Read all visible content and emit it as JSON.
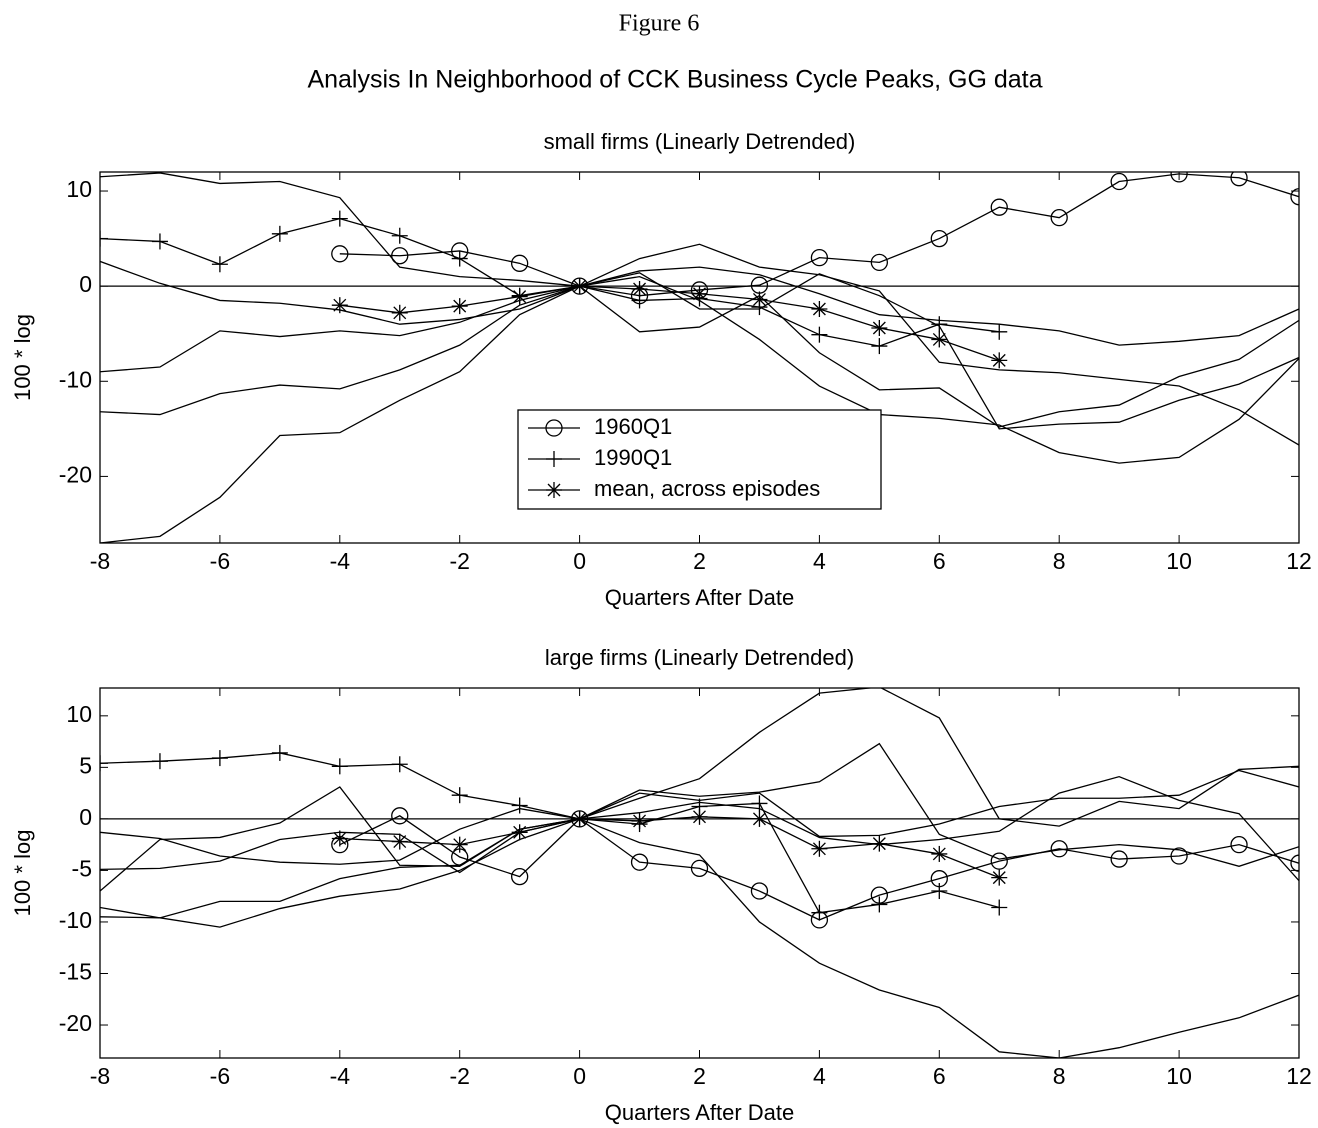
{
  "header": {
    "figure": "Figure 6",
    "title": "Analysis In Neighborhood of CCK Business Cycle Peaks, GG data"
  },
  "chart_data": [
    {
      "type": "line",
      "title": "small firms (Linearly Detrended)",
      "xlabel": "Quarters After Date",
      "ylabel": "100 * log",
      "x": [
        -8,
        -7,
        -6,
        -5,
        -4,
        -3,
        -2,
        -1,
        0,
        1,
        2,
        3,
        4,
        5,
        6,
        7,
        8,
        9,
        10,
        11,
        12
      ],
      "xlim": [
        -8,
        12
      ],
      "xticks": [
        -8,
        -6,
        -4,
        -2,
        0,
        2,
        4,
        6,
        8,
        10,
        12
      ],
      "ylim": [
        -27,
        12
      ],
      "yticks": [
        -20,
        -10,
        0,
        10
      ],
      "grid": false,
      "zero_line": true,
      "legend": "lower center",
      "series": [
        {
          "name": "1960Q1",
          "color": "#000000",
          "marker": "o",
          "values": [
            null,
            null,
            null,
            null,
            3.4,
            3.2,
            3.7,
            2.4,
            0,
            -1.0,
            -0.4,
            0.1,
            3.0,
            2.5,
            5.0,
            8.3,
            7.2,
            11.0,
            11.8,
            11.4,
            9.4
          ]
        },
        {
          "name": "1990Q1",
          "color": "#000000",
          "marker": "+",
          "values": [
            5.0,
            4.7,
            2.3,
            5.5,
            7.1,
            5.3,
            2.9,
            -1.0,
            0,
            -1.5,
            -1.3,
            -2.2,
            -5.1,
            -6.3,
            -4.0,
            -4.8,
            null,
            null,
            null,
            null,
            null
          ]
        },
        {
          "name": "mean, across episodes",
          "color": "#000000",
          "marker": "*",
          "values": [
            null,
            null,
            null,
            null,
            -2.0,
            -2.8,
            -2.1,
            -1.1,
            0,
            -0.3,
            -0.8,
            -1.4,
            -2.4,
            -4.4,
            -5.6,
            -7.8,
            null,
            null,
            null,
            null,
            null
          ]
        },
        {
          "color": "#000000",
          "values": [
            11.5,
            11.9,
            10.8,
            11.0,
            9.3,
            2.0,
            1.0,
            0.6,
            0,
            2.9,
            4.4,
            2.0,
            1.2,
            -0.5,
            -8.0,
            -8.8,
            -9.1,
            -9.8,
            -10.5,
            -13.0,
            -16.7
          ]
        },
        {
          "color": "#000000",
          "values": [
            2.6,
            0.3,
            -1.5,
            -1.8,
            -2.5,
            -4.0,
            -3.5,
            -2.4,
            0,
            1.6,
            2.0,
            1.2,
            -0.8,
            -3.0,
            -3.6,
            -4.0,
            -4.7,
            -6.2,
            -5.8,
            -5.2,
            -2.4
          ]
        },
        {
          "color": "#000000",
          "values": [
            -9.0,
            -8.5,
            -4.7,
            -5.3,
            -4.7,
            -5.2,
            -3.8,
            -1.5,
            0,
            1.4,
            -2.4,
            -2.4,
            1.3,
            -1.0,
            -4.2,
            -15.0,
            -14.5,
            -14.3,
            -12.0,
            -10.3,
            -7.5
          ]
        },
        {
          "color": "#000000",
          "values": [
            -13.2,
            -13.5,
            -11.3,
            -10.4,
            -10.8,
            -8.8,
            -6.2,
            -2.0,
            0,
            -4.8,
            -4.3,
            -1.0,
            -7.0,
            -10.9,
            -10.7,
            -14.8,
            -13.2,
            -12.5,
            -9.5,
            -7.7,
            -3.6
          ]
        },
        {
          "color": "#000000",
          "values": [
            -27.0,
            -26.3,
            -22.2,
            -15.7,
            -15.4,
            -12.0,
            -9.0,
            -3.0,
            0,
            1.0,
            -1.5,
            -5.6,
            -10.5,
            -13.5,
            -13.9,
            -14.6,
            -17.5,
            -18.6,
            -18.0,
            -14.0,
            -7.6
          ]
        }
      ]
    },
    {
      "type": "line",
      "title": "large firms (Linearly Detrended)",
      "xlabel": "Quarters After Date",
      "ylabel": "100 * log",
      "x": [
        -8,
        -7,
        -6,
        -5,
        -4,
        -3,
        -2,
        -1,
        0,
        1,
        2,
        3,
        4,
        5,
        6,
        7,
        8,
        9,
        10,
        11,
        12
      ],
      "xlim": [
        -8,
        12
      ],
      "xticks": [
        -8,
        -6,
        -4,
        -2,
        0,
        2,
        4,
        6,
        8,
        10,
        12
      ],
      "ylim": [
        -23.2,
        12.7
      ],
      "yticks": [
        -20,
        -15,
        -10,
        -5,
        0,
        5,
        10
      ],
      "grid": false,
      "zero_line": true,
      "series": [
        {
          "color": "#000000",
          "marker": "o",
          "values": [
            null,
            null,
            null,
            null,
            -2.5,
            0.3,
            -3.7,
            -5.6,
            0,
            -4.2,
            -4.8,
            -7.0,
            -9.8,
            -7.4,
            -5.8,
            -4.1,
            -2.9,
            -3.9,
            -3.6,
            -2.5,
            -4.3
          ]
        },
        {
          "color": "#000000",
          "marker": "+",
          "values": [
            5.4,
            5.6,
            5.9,
            6.4,
            5.1,
            5.3,
            2.3,
            1.3,
            0,
            -0.5,
            1.2,
            1.5,
            -9.1,
            -8.3,
            -7.0,
            -8.6,
            null,
            null,
            null,
            null,
            null
          ]
        },
        {
          "color": "#000000",
          "marker": "*",
          "values": [
            null,
            null,
            null,
            null,
            -1.9,
            -2.2,
            -2.5,
            -1.3,
            0,
            -0.2,
            0.2,
            0.0,
            -2.9,
            -2.4,
            -3.4,
            -5.7,
            null,
            null,
            null,
            null,
            null
          ]
        },
        {
          "color": "#000000",
          "values": [
            -8.6,
            -9.6,
            -8.0,
            -8.0,
            -5.8,
            -4.7,
            -4.5,
            -1.0,
            0,
            2.0,
            3.9,
            8.4,
            12.2,
            12.8,
            9.8,
            0.0,
            -0.7,
            1.7,
            1.0,
            4.8,
            5.1
          ]
        },
        {
          "color": "#000000",
          "values": [
            -7.0,
            -2.0,
            -1.8,
            -0.4,
            3.1,
            -4.5,
            -4.6,
            -1.0,
            0,
            2.8,
            2.2,
            2.6,
            3.6,
            7.3,
            -1.5,
            -3.9,
            -3.0,
            -2.5,
            -3.0,
            -4.6,
            -2.7
          ]
        },
        {
          "color": "#000000",
          "values": [
            -1.3,
            -1.9,
            -3.6,
            -4.2,
            -4.4,
            -4.0,
            -1.0,
            1.0,
            0,
            2.5,
            1.8,
            2.5,
            -1.7,
            -1.6,
            -0.5,
            1.2,
            2.0,
            2.0,
            2.3,
            4.7,
            3.1
          ]
        },
        {
          "color": "#000000",
          "values": [
            -4.9,
            -4.8,
            -4.1,
            -2.0,
            -1.3,
            -1.5,
            -5.2,
            -1.3,
            0,
            -2.3,
            -3.5,
            -10.0,
            -14.0,
            -16.6,
            -18.3,
            -22.6,
            -23.2,
            -22.2,
            -20.7,
            -19.3,
            -17.1
          ]
        },
        {
          "color": "#000000",
          "values": [
            -9.5,
            -9.6,
            -10.5,
            -8.7,
            -7.5,
            -6.8,
            -5.0,
            -2.0,
            0,
            0.6,
            1.6,
            1.0,
            -1.8,
            -2.5,
            -2.0,
            -1.2,
            2.5,
            4.1,
            1.8,
            0.5,
            -6.0
          ]
        }
      ]
    }
  ]
}
